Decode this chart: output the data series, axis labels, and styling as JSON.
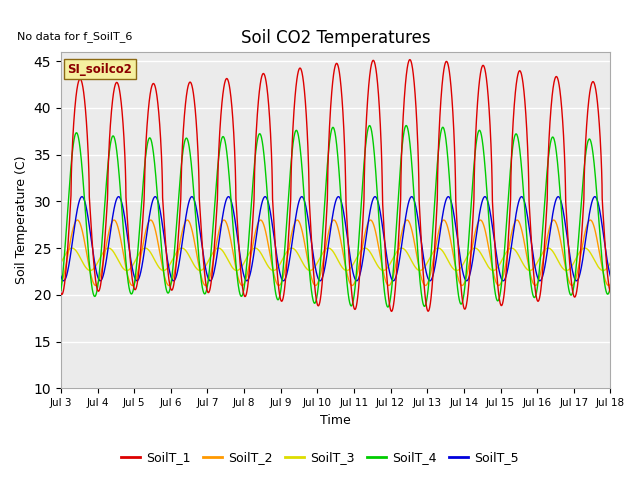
{
  "title": "Soil CO2 Temperatures",
  "xlabel": "Time",
  "ylabel": "Soil Temperature (C)",
  "ylim": [
    10,
    46
  ],
  "yticks": [
    10,
    15,
    20,
    25,
    30,
    35,
    40,
    45
  ],
  "n_days": 15,
  "x_tick_labels": [
    "Jul 3",
    "Jul 4",
    "Jul 5",
    "Jul 6",
    "Jul 7",
    "Jul 8",
    "Jul 9",
    "Jul 10",
    "Jul 11",
    "Jul 12",
    "Jul 13",
    "Jul 14",
    "Jul 15",
    "Jul 16",
    "Jul 17",
    "Jul 18"
  ],
  "no_data_text": "No data for f_SoilT_6",
  "legend_box_text": "SI_soilco2",
  "series_colors": {
    "SoilT_1": "#dd0000",
    "SoilT_2": "#ff9900",
    "SoilT_3": "#dddd00",
    "SoilT_4": "#00cc00",
    "SoilT_5": "#0000dd"
  },
  "plot_bg_color": "#ebebeb",
  "grid_color": "#ffffff",
  "legend_entries": [
    "SoilT_1",
    "SoilT_2",
    "SoilT_3",
    "SoilT_4",
    "SoilT_5"
  ]
}
